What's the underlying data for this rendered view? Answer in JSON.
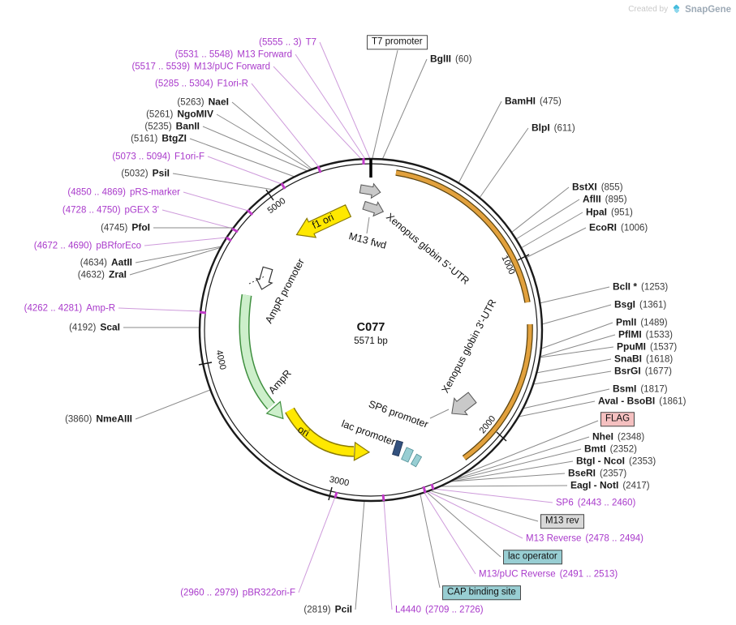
{
  "watermark": {
    "created_by": "Created by",
    "brand": "SnapGene"
  },
  "plasmid": {
    "name": "C077",
    "size": "5571 bp"
  },
  "axis_ticks": [
    "1000",
    "2000",
    "3000",
    "4000",
    "5000"
  ],
  "colors": {
    "primer": "#A93ACB",
    "primer_line": "#CE9BDB",
    "enzyme_line": "#8a8a8a",
    "orange_feature": "#E2A13D",
    "yellow_feature": "#FFE800",
    "green_feature": "#CDEFCB",
    "flag_box": "#F5C0C0",
    "teal_box": "#98CED3",
    "gray_box": "#D8D8D8"
  },
  "features": {
    "f1_ori": "f1 ori",
    "m13_fwd": "M13 fwd",
    "globin_5utr": "Xenopus globin 5'-UTR",
    "globin_3utr": "Xenopus globin 3'-UTR",
    "ampr_promoter": "AmpR promoter",
    "ampr": "AmpR",
    "ori": "ori",
    "lac_promoter": "lac promoter",
    "sp6_promoter": "SP6 promoter"
  },
  "boxed_labels": {
    "t7_promoter": "T7 promoter",
    "flag": "FLAG",
    "m13_rev": "M13 rev",
    "lac_operator": "lac operator",
    "cap_binding_site": "CAP binding site"
  },
  "site_labels": {
    "left": [
      {
        "pos": "(5555 .. 3)",
        "name": "T7",
        "kind": "primer"
      },
      {
        "pos": "(5531 .. 5548)",
        "name": "M13 Forward",
        "kind": "primer"
      },
      {
        "pos": "(5517 .. 5539)",
        "name": "M13/pUC Forward",
        "kind": "primer"
      },
      {
        "pos": "(5285 .. 5304)",
        "name": "F1ori-R",
        "kind": "primer"
      },
      {
        "pos": "(5263)",
        "name": "NaeI",
        "kind": "enzyme"
      },
      {
        "pos": "(5261)",
        "name": "NgoMIV",
        "kind": "enzyme"
      },
      {
        "pos": "(5235)",
        "name": "BanII",
        "kind": "enzyme"
      },
      {
        "pos": "(5161)",
        "name": "BtgZI",
        "kind": "enzyme"
      },
      {
        "pos": "(5073 .. 5094)",
        "name": "F1ori-F",
        "kind": "primer"
      },
      {
        "pos": "(5032)",
        "name": "PsiI",
        "kind": "enzyme"
      },
      {
        "pos": "(4850 .. 4869)",
        "name": "pRS-marker",
        "kind": "primer"
      },
      {
        "pos": "(4728 .. 4750)",
        "name": "pGEX 3'",
        "kind": "primer"
      },
      {
        "pos": "(4745)",
        "name": "PfoI",
        "kind": "enzyme"
      },
      {
        "pos": "(4672 .. 4690)",
        "name": "pBRforEco",
        "kind": "primer"
      },
      {
        "pos": "(4634)",
        "name": "AatII",
        "kind": "enzyme"
      },
      {
        "pos": "(4632)",
        "name": "ZraI",
        "kind": "enzyme"
      },
      {
        "pos": "(4262 .. 4281)",
        "name": "Amp-R",
        "kind": "primer"
      },
      {
        "pos": "(4192)",
        "name": "ScaI",
        "kind": "enzyme"
      },
      {
        "pos": "(3860)",
        "name": "NmeAIII",
        "kind": "enzyme"
      },
      {
        "pos": "(2960 .. 2979)",
        "name": "pBR322ori-F",
        "kind": "primer"
      },
      {
        "pos": "(2819)",
        "name": "PciI",
        "kind": "enzyme"
      }
    ],
    "right": [
      {
        "name": "BglII",
        "pos": "(60)",
        "kind": "enzyme"
      },
      {
        "name": "BamHI",
        "pos": "(475)",
        "kind": "enzyme"
      },
      {
        "name": "BlpI",
        "pos": "(611)",
        "kind": "enzyme"
      },
      {
        "name": "BstXI",
        "pos": "(855)",
        "kind": "enzyme"
      },
      {
        "name": "AflII",
        "pos": "(895)",
        "kind": "enzyme"
      },
      {
        "name": "HpaI",
        "pos": "(951)",
        "kind": "enzyme"
      },
      {
        "name": "EcoRI",
        "pos": "(1006)",
        "kind": "enzyme"
      },
      {
        "name": "BclI *",
        "pos": "(1253)",
        "kind": "enzyme"
      },
      {
        "name": "BsgI",
        "pos": "(1361)",
        "kind": "enzyme"
      },
      {
        "name": "PmlI",
        "pos": "(1489)",
        "kind": "enzyme"
      },
      {
        "name": "PflMI",
        "pos": "(1533)",
        "kind": "enzyme"
      },
      {
        "name": "PpuMI",
        "pos": "(1537)",
        "kind": "enzyme"
      },
      {
        "name": "SnaBI",
        "pos": "(1618)",
        "kind": "enzyme"
      },
      {
        "name": "BsrGI",
        "pos": "(1677)",
        "kind": "enzyme"
      },
      {
        "name": "BsmI",
        "pos": "(1817)",
        "kind": "enzyme"
      },
      {
        "name": "AvaI - BsoBI",
        "pos": "(1861)",
        "kind": "enzyme"
      },
      {
        "name": "NheI",
        "pos": "(2348)",
        "kind": "enzyme"
      },
      {
        "name": "BmtI",
        "pos": "(2352)",
        "kind": "enzyme"
      },
      {
        "name": "BtgI - NcoI",
        "pos": "(2353)",
        "kind": "enzyme"
      },
      {
        "name": "BseRI",
        "pos": "(2357)",
        "kind": "enzyme"
      },
      {
        "name": "EagI - NotI",
        "pos": "(2417)",
        "kind": "enzyme"
      },
      {
        "name": "SP6",
        "pos": "(2443 .. 2460)",
        "kind": "primer"
      },
      {
        "name": "M13 Reverse",
        "pos": "(2478 .. 2494)",
        "kind": "primer"
      },
      {
        "name": "M13/pUC Reverse",
        "pos": "(2491 .. 2513)",
        "kind": "primer"
      }
    ],
    "bottom": [
      {
        "name": "L4440",
        "pos": "(2709 .. 2726)",
        "kind": "primer"
      }
    ]
  }
}
